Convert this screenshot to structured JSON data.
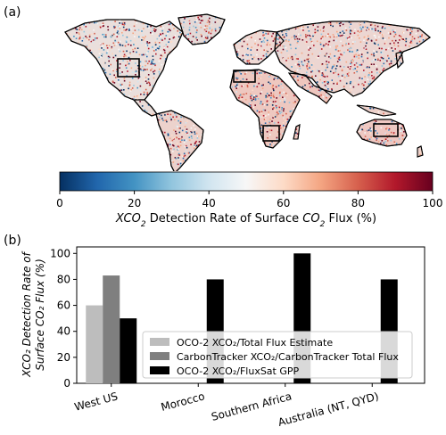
{
  "chart_data": [
    {
      "panel_label": "(a)",
      "type": "heatmap",
      "colorbar": {
        "ticks": [
          0,
          20,
          40,
          60,
          80,
          100
        ],
        "tick_labels": [
          "0",
          "20",
          "40",
          "60",
          "80",
          "100"
        ],
        "range": [
          0,
          100
        ],
        "colormap": [
          "#053061",
          "#2166ac",
          "#4393c3",
          "#92c5de",
          "#d1e5f0",
          "#f7f7f7",
          "#fddbc7",
          "#f4a582",
          "#d6604d",
          "#b2182b",
          "#67001f"
        ],
        "label_parts": {
          "lead": "XCO",
          "sub1": "2",
          "mid": " Detection Rate of Surface ",
          "co": "CO",
          "sub2": "2",
          "tail": " Flux (%)"
        }
      }
    },
    {
      "panel_label": "(b)",
      "type": "bar",
      "categories": [
        "West US",
        "Morocco",
        "Southern Africa",
        "Australia (NT, QYD)"
      ],
      "ylim": [
        0,
        105
      ],
      "yticks": [
        0,
        20,
        40,
        60,
        80,
        100
      ],
      "ylabel_line1": "XCO₂ Detection Rate of",
      "ylabel_line2": "Surface CO₂ Flux (%)",
      "series": [
        {
          "name": "OCO-2 XCO₂/Total Flux Estimate",
          "color": "#bdbdbd",
          "values": [
            60,
            null,
            null,
            null
          ]
        },
        {
          "name": "CarbonTracker XCO₂/CarbonTracker Total Flux",
          "color": "#7f7f7f",
          "values": [
            83,
            null,
            null,
            null
          ]
        },
        {
          "name": "OCO-2 XCO₂/FluxSat GPP",
          "color": "#000000",
          "values": [
            50,
            80,
            100,
            80
          ]
        }
      ],
      "legend_position": "lower-right"
    }
  ]
}
